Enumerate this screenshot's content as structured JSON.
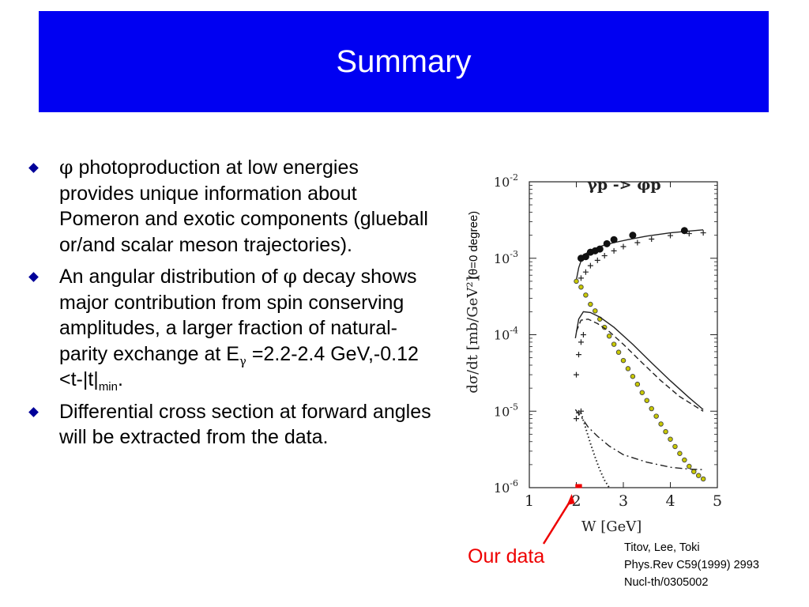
{
  "slide": {
    "title": "Summary",
    "bullets": [
      {
        "pre": "",
        "sym": "φ",
        "text": " photoproduction at low energies provides unique information about Pomeron and exotic components (glueball or/and scalar meson trajectories)."
      },
      {
        "pre": "An angular distribution of ",
        "sym": "φ",
        "text_a": " decay shows major contribution from spin conserving amplitudes, a larger fraction of natural-parity exchange at E",
        "sub_gamma": "γ",
        "text_b": " =2.2-2.4 GeV,-0.12 <t-|t|",
        "sub_min": "min",
        "text_c": "."
      },
      {
        "text": "Differential cross section at forward angles will be extracted from the data."
      }
    ],
    "annotation_angle": "(θ=0 degree)",
    "our_data_label": "Our data",
    "reference": [
      "Titov, Lee, Toki",
      "Phys.Rev C59(1999) 2993",
      "Nucl-th/0305002"
    ],
    "colors": {
      "title_bg": "#0000f2",
      "bullet": "#000099",
      "highlight": "#ee0000",
      "data_dots_fill": "#c8c800"
    }
  },
  "chart_data": {
    "type": "line",
    "title": "γp -> φp",
    "xlabel": "W [GeV]",
    "ylabel": "dσ/dt [mb/GeV²]",
    "xlim": [
      1,
      5
    ],
    "ylim": [
      1e-06,
      0.01
    ],
    "yscale": "log",
    "x_ticks": [
      "1",
      "2",
      "3",
      "4",
      "5"
    ],
    "y_ticks": [
      {
        "base": "10",
        "exp": "-6"
      },
      {
        "base": "10",
        "exp": "-5"
      },
      {
        "base": "10",
        "exp": "-4"
      },
      {
        "base": "10",
        "exp": "-3"
      },
      {
        "base": "10",
        "exp": "-2"
      }
    ],
    "highlight_range_x": [
      1.98,
      2.12
    ],
    "series": [
      {
        "style": "solid",
        "x": [
          2.0,
          2.05,
          2.1,
          2.2,
          2.35,
          2.55,
          2.8,
          3.1,
          3.5,
          4.0,
          4.5,
          4.7
        ],
        "y": [
          0.00052,
          0.00075,
          0.00092,
          0.00115,
          0.0013,
          0.00145,
          0.0016,
          0.00175,
          0.00195,
          0.00215,
          0.0023,
          0.00235
        ]
      },
      {
        "style": "plus",
        "x": [
          2.1,
          2.2,
          2.3,
          2.45,
          2.6,
          2.8,
          3.0,
          3.3,
          3.6,
          4.0,
          4.4,
          4.7
        ],
        "y": [
          0.00055,
          0.00066,
          0.0008,
          0.00094,
          0.00108,
          0.00125,
          0.00142,
          0.0016,
          0.00178,
          0.00198,
          0.0021,
          0.00215
        ]
      },
      {
        "style": "dots",
        "x": [
          2.0,
          2.1,
          2.2,
          2.3,
          2.4,
          2.5,
          2.6,
          2.7,
          2.8,
          2.9,
          3.0,
          3.1,
          3.2,
          3.3,
          3.4,
          3.5,
          3.6,
          3.7,
          3.8,
          3.9,
          4.0,
          4.1,
          4.2,
          4.3,
          4.4,
          4.5,
          4.6,
          4.7
        ],
        "y": [
          0.0005,
          0.00042,
          0.00033,
          0.00025,
          0.000205,
          0.00016,
          0.000125,
          9.6e-05,
          7.5e-05,
          5.9e-05,
          4.6e-05,
          3.6e-05,
          2.85e-05,
          2.25e-05,
          1.75e-05,
          1.38e-05,
          1.08e-05,
          8.6e-06,
          6.8e-06,
          5.4e-06,
          4.3e-06,
          3.45e-06,
          2.8e-06,
          2.3e-06,
          1.9e-06,
          1.62e-06,
          1.44e-06,
          1.3e-06
        ]
      },
      {
        "style": "solid",
        "x": [
          1.98,
          2.05,
          2.15,
          2.3,
          2.5,
          2.8,
          3.2,
          3.6,
          4.0,
          4.4,
          4.7
        ],
        "y": [
          9e-05,
          0.00016,
          0.0002,
          0.000195,
          0.00017,
          0.000125,
          7.5e-05,
          4.3e-05,
          2.5e-05,
          1.5e-05,
          1.05e-05
        ]
      },
      {
        "style": "dash",
        "x": [
          2.0,
          2.1,
          2.25,
          2.45,
          2.7,
          3.0,
          3.4,
          3.8,
          4.2,
          4.7
        ],
        "y": [
          0.00011,
          0.000155,
          0.00016,
          0.00014,
          0.00011,
          7.5e-05,
          4.3e-05,
          2.5e-05,
          1.55e-05,
          1e-05
        ]
      },
      {
        "style": "plus",
        "x": [
          2.0,
          2.05,
          2.1,
          2.15
        ],
        "y": [
          3e-05,
          5.5e-05,
          8e-05,
          0.0001
        ]
      },
      {
        "style": "dashdot",
        "x": [
          1.98,
          2.1,
          2.25,
          2.45,
          2.7,
          3.0,
          3.5,
          4.0,
          4.4,
          4.7
        ],
        "y": [
          1.05e-05,
          8.5e-06,
          6.2e-06,
          4.7e-06,
          3.5e-06,
          2.7e-06,
          2.15e-06,
          1.85e-06,
          1.75e-06,
          1.72e-06
        ]
      },
      {
        "style": "plus",
        "x": [
          2.0,
          2.05,
          2.1
        ],
        "y": [
          8e-06,
          9.5e-06,
          1e-05
        ]
      },
      {
        "style": "dotted",
        "x": [
          2.1,
          2.2,
          2.3,
          2.4,
          2.5,
          2.6,
          2.7
        ],
        "y": [
          9.5e-06,
          6e-06,
          3.8e-06,
          2.5e-06,
          1.7e-06,
          1.25e-06,
          1e-06
        ]
      },
      {
        "style": "markers",
        "x": [
          2.1,
          2.2,
          2.3,
          2.4,
          2.5,
          2.65,
          2.8,
          3.2,
          4.3
        ],
        "y": [
          0.001,
          0.00105,
          0.0012,
          0.00125,
          0.00132,
          0.00155,
          0.00175,
          0.002,
          0.0023
        ]
      }
    ]
  }
}
